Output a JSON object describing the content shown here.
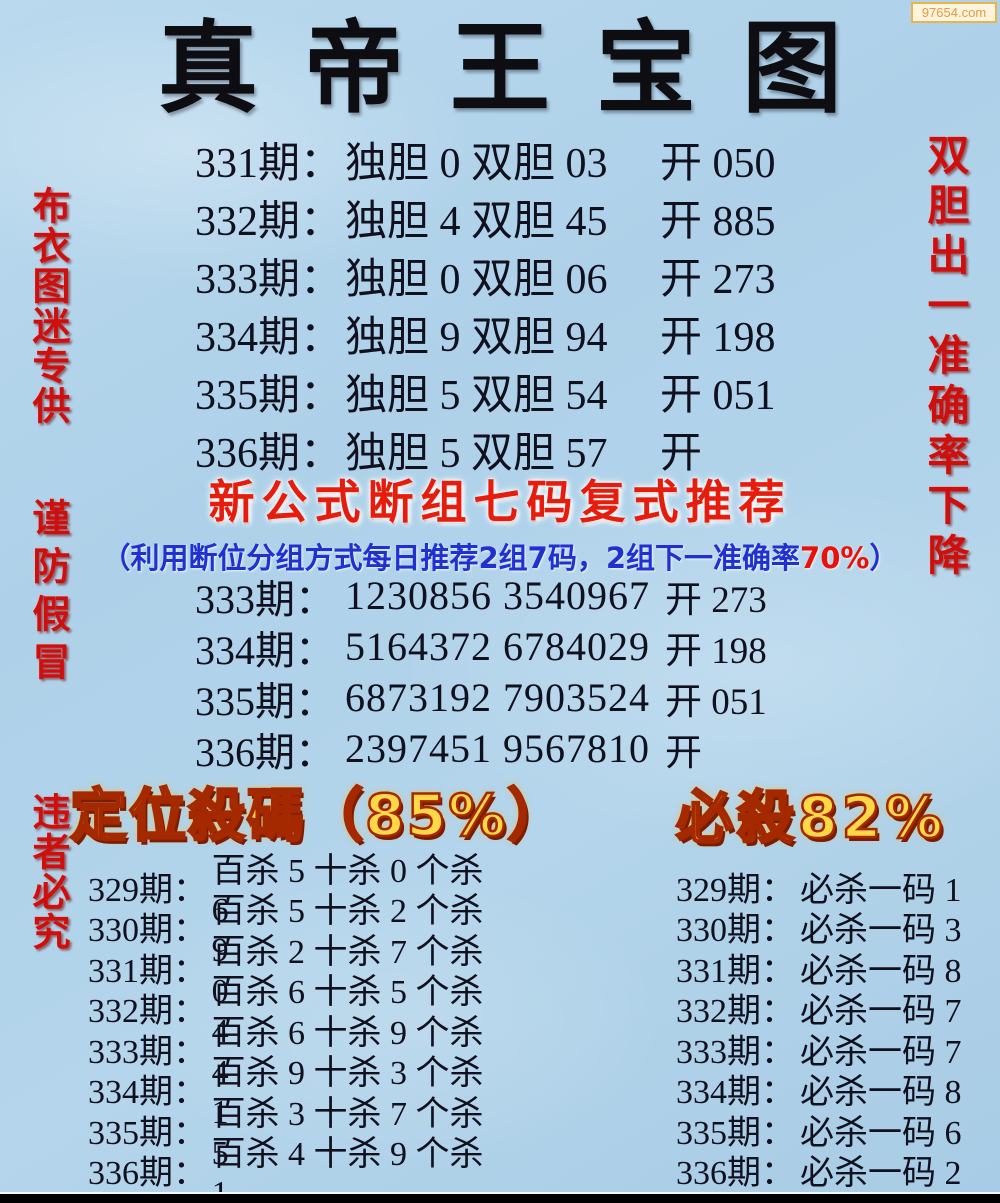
{
  "watermark": "97654.com",
  "title": "真帝王宝图",
  "side_labels": {
    "left_top": "布衣图迷专供",
    "left_middle": "谨防假冒",
    "left_bottom": "违者必究",
    "right": "双胆出一准确率下降"
  },
  "dan_section": {
    "rows": [
      {
        "period": "331期：",
        "pick": "独胆 0 双胆 03",
        "result": "开 050"
      },
      {
        "period": "332期：",
        "pick": "独胆 4 双胆 45",
        "result": "开 885"
      },
      {
        "period": "333期：",
        "pick": "独胆 0 双胆 06",
        "result": "开 273"
      },
      {
        "period": "334期：",
        "pick": "独胆 9 双胆 94",
        "result": "开 198"
      },
      {
        "period": "335期：",
        "pick": "独胆 5 双胆 54",
        "result": "开 051"
      },
      {
        "period": "336期：",
        "pick": "独胆 5 双胆 57",
        "result": "开"
      }
    ]
  },
  "formula_section": {
    "title": "新公式断组七码复式推荐",
    "subtitle_prefix": "（利用断位分组方式每日推荐2组7码，2组下一准确率",
    "subtitle_highlight": "70%",
    "subtitle_suffix": "）",
    "rows": [
      {
        "period": "333期：",
        "codes": "1230856 3540967",
        "result": "开 273"
      },
      {
        "period": "334期：",
        "codes": "5164372 6784029",
        "result": "开 198"
      },
      {
        "period": "335期：",
        "codes": "6873192 7903524",
        "result": "开 051"
      },
      {
        "period": "336期：",
        "codes": "2397451 9567810",
        "result": "开"
      }
    ]
  },
  "kill_section": {
    "left_header": "定位殺碼（85%）",
    "right_header": "必殺82%",
    "left_rows": [
      {
        "period": "329期：",
        "text": "百杀 5 十杀 0 个杀 6"
      },
      {
        "period": "330期：",
        "text": "百杀 5 十杀 2 个杀 9"
      },
      {
        "period": "331期：",
        "text": "百杀 2 十杀 7 个杀 0"
      },
      {
        "period": "332期：",
        "text": "百杀 6 十杀 5 个杀 4"
      },
      {
        "period": "333期：",
        "text": "百杀 6 十杀 9 个杀 4"
      },
      {
        "period": "334期：",
        "text": "百杀 9 十杀 3 个杀 1"
      },
      {
        "period": "335期：",
        "text": "百杀 3 十杀 7 个杀 5"
      },
      {
        "period": "336期：",
        "text": "百杀 4 十杀 9 个杀 1"
      }
    ],
    "right_rows": [
      {
        "period": "329期：",
        "text": "必杀一码 1"
      },
      {
        "period": "330期：",
        "text": "必杀一码 3"
      },
      {
        "period": "331期：",
        "text": "必杀一码 8"
      },
      {
        "period": "332期：",
        "text": "必杀一码 7"
      },
      {
        "period": "333期：",
        "text": "必杀一码 7"
      },
      {
        "period": "334期：",
        "text": "必杀一码 8"
      },
      {
        "period": "335期：",
        "text": "必杀一码 6"
      },
      {
        "period": "336期：",
        "text": "必杀一码 2"
      }
    ]
  },
  "colors": {
    "background_blue": "#aed1e9",
    "text_dark": "#10101f",
    "side_label_red": "#cd100e",
    "banner_red": "#e61c0c",
    "subtitle_blue": "#2031cf",
    "wordart_gold": "#ffd848",
    "wordart_outline": "#a52900",
    "watermark_orange": "#e39b3f",
    "bottom_bar_black": "#010101"
  }
}
